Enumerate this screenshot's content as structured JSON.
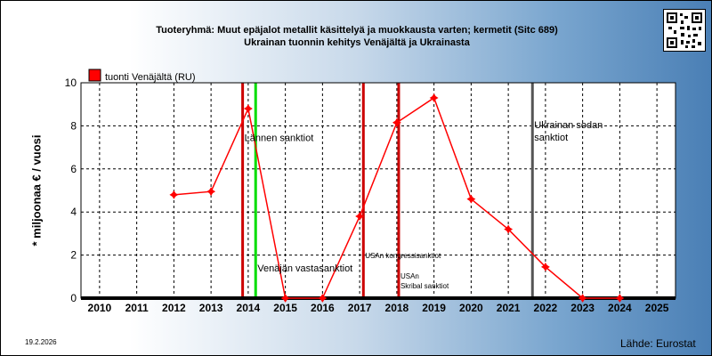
{
  "header": {
    "title_line1": "Tuoteryhmä: Muut epäjalot metallit käsittelyä ja muokkausta varten; kermetit (Sitc 689)",
    "title_line2": "Ukrainan tuonnin kehitys  Venäjältä ja Ukrainasta"
  },
  "footer": {
    "date": "19.2.2026",
    "source": "Lähde: Eurostat"
  },
  "chart_data": {
    "type": "line",
    "ylabel": "* miljoonaa € / vuosi",
    "xlabel": "",
    "ylim": [
      0,
      10
    ],
    "yticks": [
      0,
      2,
      4,
      6,
      8,
      10
    ],
    "xlim": [
      2009.5,
      2025.5
    ],
    "xticks": [
      2010,
      2011,
      2012,
      2013,
      2014,
      2015,
      2016,
      2017,
      2018,
      2019,
      2020,
      2021,
      2022,
      2023,
      2024,
      2025
    ],
    "grid": true,
    "legend_position": "top-left",
    "series": [
      {
        "name": "tuonti Venäjältä (RU)",
        "color": "#ff0000",
        "points": [
          {
            "x": 2012,
            "y": 4.8
          },
          {
            "x": 2013,
            "y": 4.95
          },
          {
            "x": 2014,
            "y": 8.8
          },
          {
            "x": 2015,
            "y": 0
          },
          {
            "x": 2016,
            "y": 0
          },
          {
            "x": 2017,
            "y": 3.8
          },
          {
            "x": 2018,
            "y": 8.15
          },
          {
            "x": 2019,
            "y": 9.3
          },
          {
            "x": 2020,
            "y": 4.6
          },
          {
            "x": 2021,
            "y": 3.2
          },
          {
            "x": 2022,
            "y": 1.45
          },
          {
            "x": 2023,
            "y": 0
          },
          {
            "x": 2024,
            "y": 0
          }
        ]
      }
    ],
    "events": [
      {
        "x": 2013.85,
        "color": "#cc0000",
        "label": "Lännen sanktiot",
        "label_x": 2013.85,
        "label_y": 7.3,
        "font_size": 11
      },
      {
        "x": 2014.2,
        "color": "#00dd00",
        "label": "Venäjän vastasanktiot",
        "label_x": 2014.2,
        "label_y": 1.25,
        "font_size": 11
      },
      {
        "x": 2017.1,
        "color": "#cc0000",
        "label": "USAn kongressisanktiot",
        "label_x": 2017.1,
        "label_y": 1.85,
        "font_size": 8
      },
      {
        "x": 2018.05,
        "color": "#cc0000",
        "label": "USAn Skribal sanktiot",
        "label_x": 2018.05,
        "label_y": 0.9,
        "font_size": 8
      },
      {
        "x": 2021.65,
        "color": "#555555",
        "label": "Ukrainan sodan sanktiot",
        "label_x": 2021.65,
        "label_y": 7.9,
        "font_size": 11
      }
    ]
  }
}
